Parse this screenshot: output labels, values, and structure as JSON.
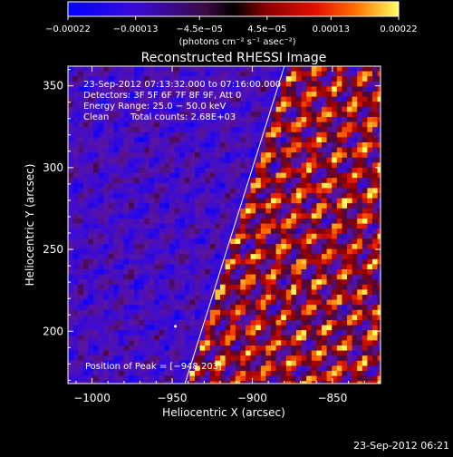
{
  "chart_data": {
    "type": "heatmap",
    "title": "Reconstructed RHESSI Image",
    "xlabel": "Heliocentric X (arcsec)",
    "ylabel": "Heliocentric Y (arcsec)",
    "xlim": [
      -1015,
      -820
    ],
    "ylim": [
      168,
      362
    ],
    "x_ticks": [
      -1000,
      -950,
      -900,
      -850
    ],
    "x_tick_labels": [
      "−1000",
      "−950",
      "−900",
      "−850"
    ],
    "y_ticks": [
      200,
      250,
      300,
      350
    ],
    "y_tick_labels": [
      "200",
      "250",
      "300",
      "350"
    ],
    "colorbar": {
      "range": [
        -0.00022,
        0.00022
      ],
      "ticks": [
        -0.00022,
        -0.00013,
        -4.5e-05,
        4.5e-05,
        0.00013,
        0.00022
      ],
      "tick_labels": [
        "−0.00022",
        "−0.00013",
        "−4.5e−05",
        "4.5e−05",
        "0.00013",
        "0.00022"
      ],
      "unit": "(photons cm⁻² s⁻¹ asec⁻²)"
    },
    "limb_line": [
      [
        -942,
        168
      ],
      [
        -880,
        362
      ]
    ],
    "peak": [
      -948,
      203
    ],
    "colors": {
      "background": "#000000",
      "text": "#ffffff",
      "limb": "#ffffff"
    }
  },
  "annotations": {
    "time_range": "23‑Sep‑2012 07:13:32.000 to 07:16:00.000",
    "detectors": "Detectors: 3F 5F 6F 7F 8F 9F, Att 0",
    "energy": "Energy Range: 25.0 − 50.0 keV",
    "method": "Clean",
    "total_counts": "Total counts: 2.68E+03",
    "peak_text": "Position of Peak = [−948,203]"
  },
  "footer": {
    "timestamp": "23‑Sep‑2012 06:21"
  }
}
